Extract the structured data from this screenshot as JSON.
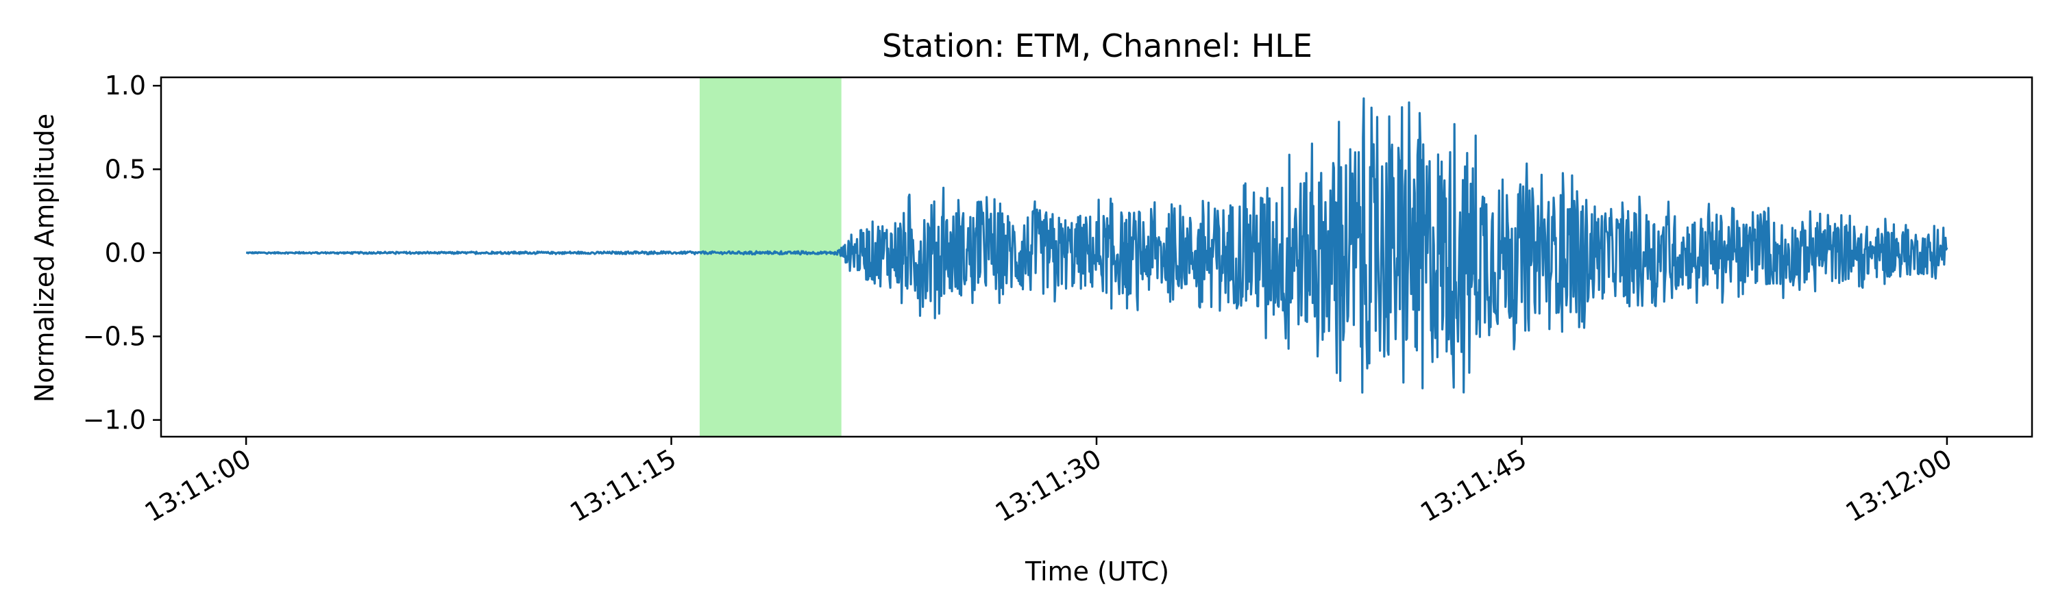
{
  "chart_data": {
    "type": "line",
    "title": "Station: ETM, Channel: HLE",
    "xlabel": "Time (UTC)",
    "ylabel": "Normalized Amplitude",
    "x_unit": "time of day (UTC)",
    "xlim": [
      "13:10:57",
      "13:12:03"
    ],
    "ylim": [
      -1.1,
      1.05
    ],
    "x_ticks": [
      "13:11:00",
      "13:11:15",
      "13:11:30",
      "13:11:45",
      "13:12:00"
    ],
    "y_ticks": [
      {
        "value": 1.0,
        "label": "1.0"
      },
      {
        "value": 0.5,
        "label": "0.5"
      },
      {
        "value": 0.0,
        "label": "0.0"
      },
      {
        "value": -0.5,
        "label": "−0.5"
      },
      {
        "value": -1.0,
        "label": "−1.0"
      }
    ],
    "grid": false,
    "highlight": {
      "start": "13:11:16",
      "end": "13:11:21",
      "color": "#b3f2b3"
    },
    "series": [
      {
        "color": "#1f77b4",
        "x": [
          "13:11:00",
          "13:11:20.8",
          "13:11:22",
          "13:11:23",
          "13:11:24",
          "13:11:25",
          "13:11:26",
          "13:11:27",
          "13:11:28",
          "13:11:29",
          "13:11:30",
          "13:11:31",
          "13:11:32",
          "13:11:33",
          "13:11:34",
          "13:11:35",
          "13:11:36",
          "13:11:37",
          "13:11:38",
          "13:11:39",
          "13:11:40",
          "13:11:41",
          "13:11:42",
          "13:11:43",
          "13:11:44",
          "13:11:45",
          "13:11:46",
          "13:11:47",
          "13:11:48",
          "13:11:49",
          "13:11:50",
          "13:11:51",
          "13:11:52",
          "13:11:53",
          "13:11:54",
          "13:11:55",
          "13:11:56",
          "13:11:57",
          "13:11:58",
          "13:11:59",
          "13:12:00"
        ],
        "envelope": [
          0.005,
          0.01,
          0.25,
          0.3,
          0.45,
          0.35,
          0.35,
          0.33,
          0.35,
          0.3,
          0.32,
          0.35,
          0.35,
          0.3,
          0.35,
          0.45,
          0.55,
          0.6,
          0.7,
          0.92,
          0.93,
          0.9,
          0.92,
          0.85,
          0.65,
          0.55,
          0.48,
          0.5,
          0.35,
          0.35,
          0.32,
          0.3,
          0.32,
          0.25,
          0.28,
          0.25,
          0.25,
          0.22,
          0.2,
          0.18,
          0.15
        ]
      }
    ]
  }
}
